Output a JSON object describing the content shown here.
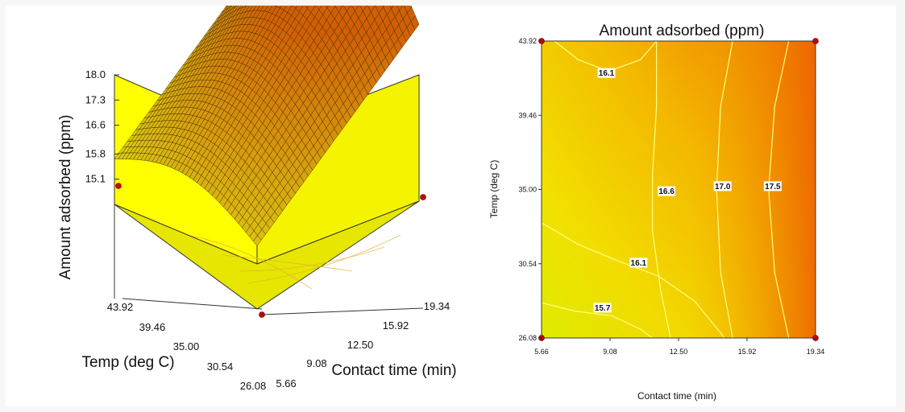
{
  "chart_data": [
    {
      "type": "surface3d",
      "title": "",
      "xlabel": "Contact time (min)",
      "ylabel": "Temp (deg C)",
      "zlabel": "Amount adsorbed (ppm)",
      "x_ticks": [
        "5.66",
        "9.08",
        "12.50",
        "15.92",
        "19.34"
      ],
      "y_ticks": [
        "26.08",
        "30.54",
        "35.00",
        "39.46",
        "43.92"
      ],
      "z_ticks": [
        "15.1",
        "15.8",
        "16.6",
        "17.3",
        "18.0"
      ],
      "xlim": [
        5.66,
        19.34
      ],
      "ylim": [
        26.08,
        43.92
      ],
      "zlim": [
        14.4,
        18.0
      ],
      "colors": {
        "background": "#ffff00",
        "surface_low": "#e0d000",
        "surface_high": "#e06a00",
        "mesh": "#3a2a00",
        "point": "#cc0000"
      },
      "design_points": [
        {
          "x": 5.66,
          "y": 26.08
        },
        {
          "x": 19.34,
          "y": 26.08
        },
        {
          "x": 5.66,
          "y": 43.92
        },
        {
          "x": 19.34,
          "y": 43.92
        }
      ]
    },
    {
      "type": "contour",
      "title": "Amount adsorbed (ppm)",
      "xlabel": "Contact time (min)",
      "ylabel": "Temp (deg C)",
      "x_ticks": [
        "5.66",
        "9.08",
        "12.50",
        "15.92",
        "19.34"
      ],
      "y_ticks": [
        "26.08",
        "30.54",
        "35.00",
        "39.46",
        "43.92"
      ],
      "xlim": [
        5.66,
        19.34
      ],
      "ylim": [
        26.08,
        43.92
      ],
      "contour_levels": [
        15.7,
        16.1,
        16.6,
        17.0,
        17.5
      ],
      "contour_labels": [
        {
          "text": "16.1",
          "x": 8.9,
          "y": 42.0
        },
        {
          "text": "16.6",
          "x": 11.9,
          "y": 34.9
        },
        {
          "text": "17.0",
          "x": 14.7,
          "y": 35.2
        },
        {
          "text": "17.5",
          "x": 17.2,
          "y": 35.2
        },
        {
          "text": "16.1",
          "x": 10.5,
          "y": 30.6
        },
        {
          "text": "15.7",
          "x": 8.7,
          "y": 27.9
        }
      ],
      "design_points": [
        {
          "x": 5.66,
          "y": 26.08
        },
        {
          "x": 19.34,
          "y": 26.08
        },
        {
          "x": 5.66,
          "y": 43.92
        },
        {
          "x": 19.34,
          "y": 43.92
        }
      ],
      "colors": {
        "low": "#e8f000",
        "mid": "#f4c000",
        "high": "#ee6a00",
        "contour_line": "#ffff90",
        "point": "#cc0000"
      }
    }
  ]
}
